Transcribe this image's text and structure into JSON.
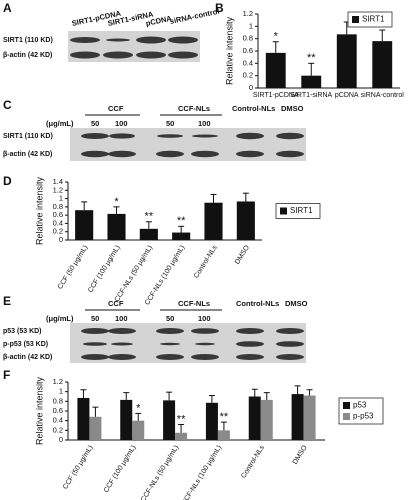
{
  "panels": {
    "A": {
      "label": "A",
      "lanes": [
        "SIRT1-pCDNA",
        "SIRT1-siRNA",
        "pCDNA",
        "siRNA-control"
      ],
      "rows": [
        "SIRT1 (110 KD)",
        "β-actin (42 KD)"
      ]
    },
    "C": {
      "label": "C",
      "groups": [
        "CCF",
        "CCF-NLs",
        "Control-NLs",
        "DMSO"
      ],
      "unit": "(μg/mL)",
      "doses": [
        "50",
        "100",
        "50",
        "100"
      ],
      "rows": [
        "SIRT1 (110 KD)",
        "β-actin (42 KD)"
      ]
    },
    "E": {
      "label": "E",
      "groups": [
        "CCF",
        "CCF-NLs",
        "Control-NLs",
        "DMSO"
      ],
      "unit": "(μg/mL)",
      "doses": [
        "50",
        "100",
        "50",
        "100"
      ],
      "rows": [
        "p53 (53 KD)",
        "p-p53 (53 KD)",
        "β-actin (42 KD)"
      ]
    }
  },
  "chart_data": [
    {
      "type": "bar",
      "panel": "B",
      "ylabel": "Relative intensity",
      "categories": [
        "SIRT1-pCDNA",
        "SIRT1-siRNA",
        "pCDNA",
        "siRNA-control"
      ],
      "series": [
        {
          "name": "SIRT1",
          "color": "#111111",
          "values": [
            0.57,
            0.2,
            0.87,
            0.76
          ],
          "errors": [
            0.18,
            0.2,
            0.2,
            0.18
          ],
          "annotations": [
            "*",
            "**",
            null,
            null
          ]
        }
      ],
      "ylim": [
        0,
        1.2
      ],
      "yticks": [
        0,
        0.2,
        0.4,
        0.6,
        0.8,
        1,
        1.2
      ],
      "legend": "upper right"
    },
    {
      "type": "bar",
      "panel": "D",
      "ylabel": "Relative intensity",
      "categories": [
        "CCF (50 μg/mL)",
        "CCF (100 μg/mL)",
        "CCF-NLs (50 μg/mL)",
        "CCF-NLs (100 μg/mL)",
        "Control-NLs",
        "DMSO"
      ],
      "series": [
        {
          "name": "SIRT1",
          "color": "#111111",
          "values": [
            0.72,
            0.63,
            0.27,
            0.18,
            0.9,
            0.93
          ],
          "errors": [
            0.2,
            0.17,
            0.17,
            0.15,
            0.2,
            0.2
          ],
          "annotations": [
            null,
            "*",
            "**",
            "**",
            null,
            null
          ]
        }
      ],
      "ylim": [
        0,
        1.4
      ],
      "yticks": [
        0,
        0.2,
        0.4,
        0.6,
        0.8,
        1,
        1.2,
        1.4
      ],
      "legend": "right"
    },
    {
      "type": "bar",
      "panel": "F",
      "ylabel": "Relative intensity",
      "categories": [
        "CCF (50 μg/mL)",
        "CCF (100 μg/mL)",
        "CCF-NLs (50 μg/mL)",
        "CCF-NLs (100 μg/mL)",
        "Control-NLs",
        "DMSO"
      ],
      "series": [
        {
          "name": "p53",
          "color": "#111111",
          "values": [
            0.87,
            0.83,
            0.82,
            0.77,
            0.9,
            0.95
          ],
          "errors": [
            0.17,
            0.15,
            0.17,
            0.15,
            0.15,
            0.17
          ],
          "annotations": [
            null,
            null,
            null,
            null,
            null,
            null
          ]
        },
        {
          "name": "p-p53",
          "color": "#8a8a8a",
          "values": [
            0.48,
            0.4,
            0.15,
            0.2,
            0.83,
            0.92
          ],
          "errors": [
            0.2,
            0.15,
            0.17,
            0.17,
            0.15,
            0.12
          ],
          "annotations": [
            null,
            "*",
            "**",
            "**",
            null,
            null
          ]
        }
      ],
      "ylim": [
        0,
        1.2
      ],
      "yticks": [
        0,
        0.2,
        0.4,
        0.6,
        0.8,
        1,
        1.2
      ],
      "legend": "right"
    }
  ]
}
